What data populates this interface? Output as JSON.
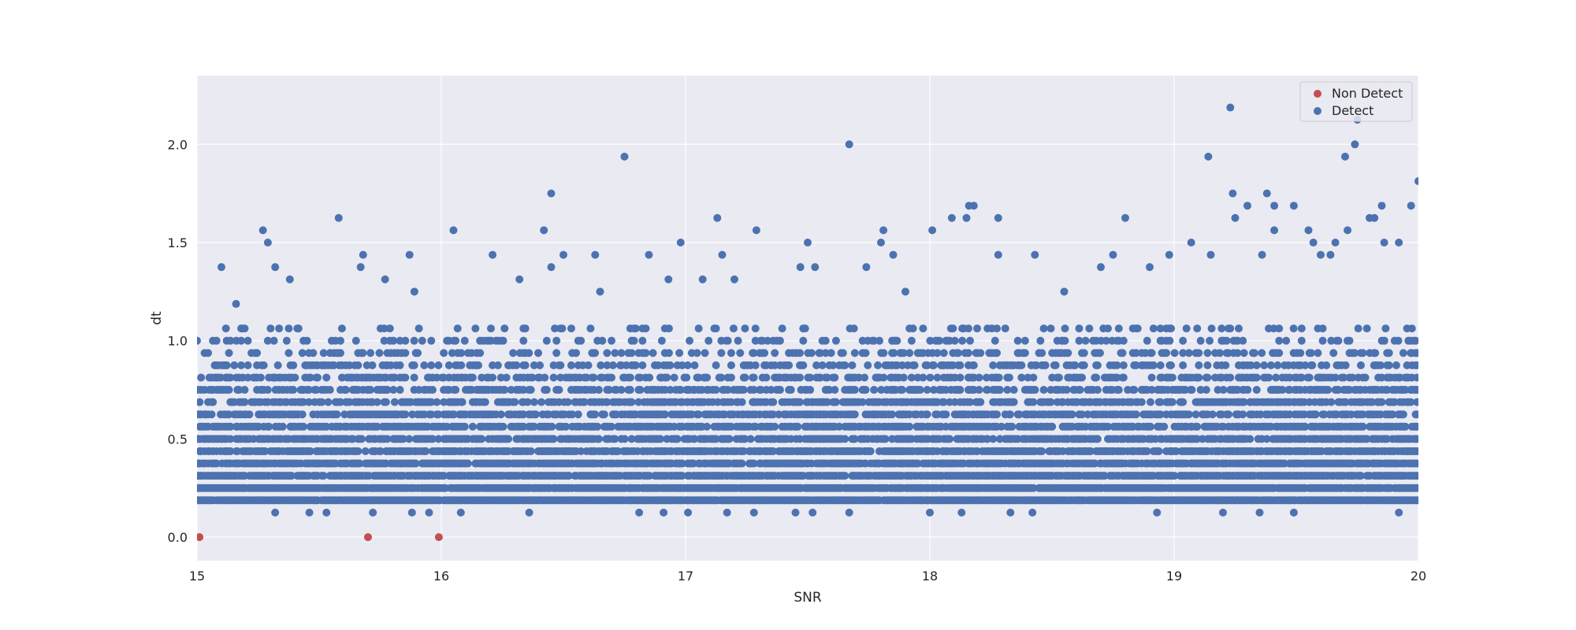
{
  "chart_data": {
    "type": "scatter",
    "xlabel": "SNR",
    "ylabel": "dt",
    "xlim": [
      15,
      20
    ],
    "ylim": [
      -0.12,
      2.35
    ],
    "xticks": [
      15,
      16,
      17,
      18,
      19,
      20
    ],
    "xtick_labels": [
      "15",
      "16",
      "17",
      "18",
      "19",
      "20"
    ],
    "yticks": [
      0.0,
      0.5,
      1.0,
      1.5,
      2.0
    ],
    "ytick_labels": [
      "0.0",
      "0.5",
      "1.0",
      "1.5",
      "2.0"
    ],
    "grid": true,
    "legend_position": "top-right",
    "y_step": 0.0625,
    "series": [
      {
        "name": "Non Detect",
        "color": "#c44e52",
        "points": [
          [
            15.01,
            0.0
          ],
          [
            15.7,
            0.0
          ],
          [
            15.99,
            0.0
          ]
        ]
      },
      {
        "name": "Detect",
        "color": "#4c72b0",
        "points": [
          [
            15.0,
            1.0
          ],
          [
            15.1,
            1.375
          ],
          [
            15.16,
            1.1875
          ],
          [
            15.27,
            1.5625
          ],
          [
            15.29,
            1.5
          ],
          [
            15.32,
            1.375
          ],
          [
            15.38,
            1.3125
          ],
          [
            15.58,
            1.625
          ],
          [
            15.67,
            1.375
          ],
          [
            15.68,
            1.4375
          ],
          [
            15.77,
            1.3125
          ],
          [
            15.87,
            1.4375
          ],
          [
            15.89,
            1.25
          ],
          [
            16.05,
            1.5625
          ],
          [
            16.21,
            1.4375
          ],
          [
            16.32,
            1.3125
          ],
          [
            16.42,
            1.5625
          ],
          [
            16.45,
            1.75
          ],
          [
            16.45,
            1.375
          ],
          [
            16.5,
            1.4375
          ],
          [
            16.63,
            1.4375
          ],
          [
            16.65,
            1.25
          ],
          [
            16.75,
            1.9375
          ],
          [
            16.85,
            1.4375
          ],
          [
            16.93,
            1.3125
          ],
          [
            16.98,
            1.5
          ],
          [
            17.07,
            1.3125
          ],
          [
            17.13,
            1.625
          ],
          [
            17.15,
            1.4375
          ],
          [
            17.2,
            1.3125
          ],
          [
            17.29,
            1.5625
          ],
          [
            17.47,
            1.375
          ],
          [
            17.5,
            1.5
          ],
          [
            17.53,
            1.375
          ],
          [
            17.67,
            2.0
          ],
          [
            17.74,
            1.375
          ],
          [
            17.8,
            1.5
          ],
          [
            17.81,
            1.5625
          ],
          [
            17.85,
            1.4375
          ],
          [
            17.9,
            1.25
          ],
          [
            18.01,
            1.5625
          ],
          [
            18.09,
            1.625
          ],
          [
            18.15,
            1.625
          ],
          [
            18.16,
            1.6875
          ],
          [
            18.18,
            1.6875
          ],
          [
            18.28,
            1.625
          ],
          [
            18.28,
            1.4375
          ],
          [
            18.43,
            1.4375
          ],
          [
            18.55,
            1.25
          ],
          [
            18.7,
            1.375
          ],
          [
            18.75,
            1.4375
          ],
          [
            18.8,
            1.625
          ],
          [
            18.9,
            1.375
          ],
          [
            18.98,
            1.4375
          ],
          [
            19.07,
            1.5
          ],
          [
            19.14,
            1.9375
          ],
          [
            19.15,
            1.4375
          ],
          [
            19.23,
            2.1875
          ],
          [
            19.24,
            1.75
          ],
          [
            19.25,
            1.625
          ],
          [
            19.3,
            1.6875
          ],
          [
            19.36,
            1.4375
          ],
          [
            19.38,
            1.75
          ],
          [
            19.41,
            1.6875
          ],
          [
            19.41,
            1.5625
          ],
          [
            19.49,
            1.6875
          ],
          [
            19.55,
            1.5625
          ],
          [
            19.57,
            1.5
          ],
          [
            19.6,
            1.4375
          ],
          [
            19.64,
            1.4375
          ],
          [
            19.66,
            1.5
          ],
          [
            19.7,
            1.9375
          ],
          [
            19.71,
            1.5625
          ],
          [
            19.74,
            2.0
          ],
          [
            19.75,
            2.125
          ],
          [
            19.8,
            1.625
          ],
          [
            19.82,
            1.625
          ],
          [
            19.85,
            1.6875
          ],
          [
            19.86,
            1.5
          ],
          [
            19.92,
            1.5
          ],
          [
            19.97,
            1.6875
          ],
          [
            20.0,
            1.8125
          ],
          [
            15.32,
            0.125
          ],
          [
            15.46,
            0.125
          ],
          [
            15.53,
            0.125
          ],
          [
            15.72,
            0.125
          ],
          [
            15.88,
            0.125
          ],
          [
            15.95,
            0.125
          ],
          [
            16.08,
            0.125
          ],
          [
            16.36,
            0.125
          ],
          [
            16.81,
            0.125
          ],
          [
            16.91,
            0.125
          ],
          [
            17.01,
            0.125
          ],
          [
            17.17,
            0.125
          ],
          [
            17.28,
            0.125
          ],
          [
            17.45,
            0.125
          ],
          [
            17.52,
            0.125
          ],
          [
            17.67,
            0.125
          ],
          [
            18.0,
            0.125
          ],
          [
            18.13,
            0.125
          ],
          [
            18.33,
            0.125
          ],
          [
            18.42,
            0.125
          ],
          [
            18.93,
            0.125
          ],
          [
            19.2,
            0.125
          ],
          [
            19.35,
            0.125
          ],
          [
            19.49,
            0.125
          ],
          [
            19.92,
            0.125
          ]
        ]
      }
    ]
  }
}
